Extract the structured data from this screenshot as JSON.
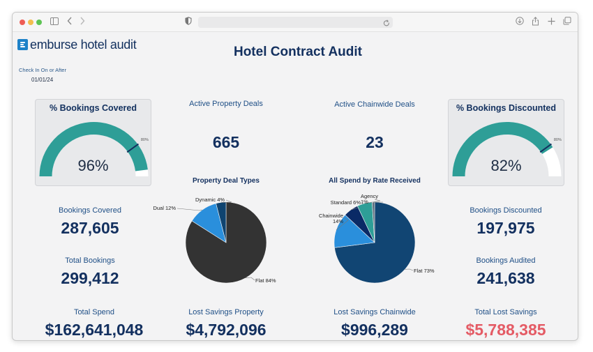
{
  "window": {
    "icons": {
      "sidebar": "sidebar-icon",
      "back": "chevron-left-icon",
      "forward": "chevron-right-icon",
      "shield": "shield-icon",
      "reload": "reload-icon",
      "download": "download-icon",
      "share": "share-icon",
      "new_tab": "plus-icon",
      "tabs": "tabs-icon"
    }
  },
  "brand": {
    "name": "emburse hotel audit",
    "accent": "#1e82c8"
  },
  "filter": {
    "label": "Check In On or After",
    "value": "01/01/24"
  },
  "title": "Hotel Contract Audit",
  "gauges": [
    {
      "title": "% Bookings Covered",
      "value_text": "96%",
      "value": 0.96,
      "target_text": "80%",
      "target": 0.8,
      "color": "#2e9e97"
    },
    {
      "title": "% Bookings Discounted",
      "value_text": "82%",
      "value": 0.82,
      "target_text": "80%",
      "target": 0.8,
      "color": "#2e9e97"
    }
  ],
  "kpis": {
    "active_property_deals": {
      "label": "Active Property Deals",
      "value": "665"
    },
    "active_chainwide_deals": {
      "label": "Active Chainwide Deals",
      "value": "23"
    },
    "bookings_covered": {
      "label": "Bookings Covered",
      "value": "287,605"
    },
    "total_bookings": {
      "label": "Total Bookings",
      "value": "299,412"
    },
    "bookings_discounted": {
      "label": "Bookings Discounted",
      "value": "197,975"
    },
    "bookings_audited": {
      "label": "Bookings Audited",
      "value": "241,638"
    },
    "total_spend": {
      "label": "Total Spend",
      "value": "$162,641,048"
    },
    "lost_savings_property": {
      "label": "Lost Savings Property",
      "value": "$4,792,096"
    },
    "lost_savings_chainwide": {
      "label": "Lost Savings Chainwide",
      "value": "$996,289"
    },
    "total_lost_savings": {
      "label": "Total Lost Savings",
      "value": "$5,788,385",
      "color": "#e45b65"
    }
  },
  "chart_data": [
    {
      "type": "pie",
      "title": "Property Deal Types",
      "slices": [
        {
          "label": "Flat",
          "value": 84,
          "display": "Flat 84%",
          "color": "#333333"
        },
        {
          "label": "Dual",
          "value": 12,
          "display": "Dual 12%",
          "color": "#2a8fdc"
        },
        {
          "label": "Dynamic",
          "value": 4,
          "display": "Dynamic 4%",
          "color": "#0f4470"
        }
      ]
    },
    {
      "type": "pie",
      "title": "All Spend by Rate Received",
      "slices": [
        {
          "label": "Flat",
          "value": 73,
          "display": "Flat 73%",
          "color": "#114573"
        },
        {
          "label": "Chainwide",
          "value": 14,
          "display": "Chainwide 14%",
          "color": "#2a8fdc"
        },
        {
          "label": "Standard",
          "value": 6,
          "display": "Standard 6%",
          "color": "#0a2a66"
        },
        {
          "label": "Agency",
          "value": 6,
          "display": "Agency 6%",
          "color": "#2e9e97"
        },
        {
          "label": "",
          "value": 1,
          "display": "1%",
          "color": "#5d6d7e"
        }
      ]
    }
  ]
}
